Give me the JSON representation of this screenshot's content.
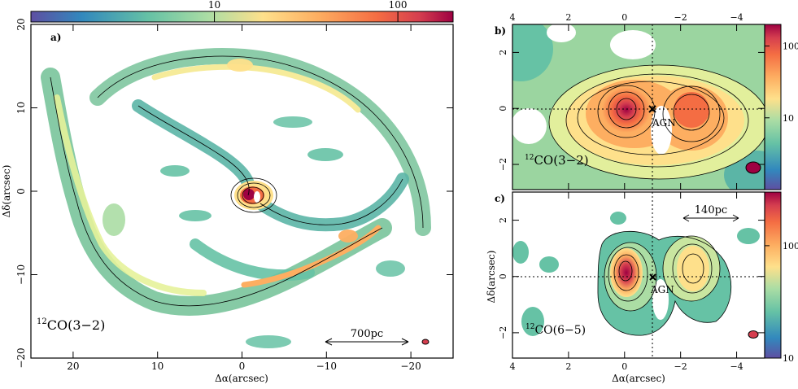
{
  "chart_data": [
    {
      "type": "heatmap",
      "id": "a",
      "panel_label": "a)",
      "line_label": "12CO(3−2)",
      "line_label_sup": "12",
      "line_label_main": "CO(3−2)",
      "scalebar_label": "700pc",
      "xlabel": "Δα(arcsec)",
      "ylabel": "Δδ(arcsec)",
      "xlim": [
        25,
        -25
      ],
      "ylim": [
        -20,
        20
      ],
      "x_ticks": [
        20,
        10,
        0,
        -10,
        -20
      ],
      "x_tick_labels": [
        "20",
        "10",
        "0",
        "−10",
        "−20"
      ],
      "y_ticks": [
        20,
        10,
        0,
        -10,
        -20
      ],
      "y_tick_labels": [
        "20",
        "10",
        "0",
        "−10",
        "−20"
      ],
      "colorbar": {
        "orientation": "horizontal",
        "position": "top",
        "scale": "log",
        "range": [
          1,
          200
        ],
        "ticks": [
          10,
          100
        ],
        "tick_labels": [
          "10",
          "100"
        ]
      }
    },
    {
      "type": "heatmap",
      "id": "b",
      "panel_label": "b)",
      "line_label_sup": "12",
      "line_label_main": "CO(3−2)",
      "agn_label": "AGN",
      "xlim": [
        4,
        -5
      ],
      "ylim": [
        -2.9,
        3.0
      ],
      "x_ticks": [
        4,
        2,
        0,
        -2,
        -4
      ],
      "x_tick_labels": [
        "4",
        "2",
        "0",
        "−2",
        "−4"
      ],
      "y_ticks": [
        2,
        0,
        -2
      ],
      "y_tick_labels": [
        "2",
        "0",
        "−2"
      ],
      "colorbar": {
        "orientation": "vertical",
        "position": "right",
        "scale": "log",
        "range": [
          1,
          200
        ],
        "ticks": [
          10,
          100
        ],
        "tick_labels": [
          "10",
          "100"
        ]
      }
    },
    {
      "type": "heatmap",
      "id": "c",
      "panel_label": "c)",
      "line_label_sup": "12",
      "line_label_main": "CO(6−5)",
      "agn_label": "AGN",
      "scalebar_label": "140pc",
      "xlabel": "Δα(arcsec)",
      "ylabel": "Δδ(arcsec)",
      "xlim": [
        4,
        -5
      ],
      "ylim": [
        -2.9,
        3.0
      ],
      "x_ticks": [
        4,
        2,
        0,
        -2,
        -4
      ],
      "x_tick_labels": [
        "4",
        "2",
        "0",
        "−2",
        "−4"
      ],
      "y_ticks": [
        2,
        0,
        -2
      ],
      "y_tick_labels": [
        "2",
        "0",
        "−2"
      ],
      "colorbar": {
        "orientation": "vertical",
        "position": "right",
        "scale": "log",
        "range": [
          10,
          300
        ],
        "ticks": [
          100,
          10
        ],
        "tick_labels": [
          "100",
          "10"
        ]
      }
    }
  ]
}
